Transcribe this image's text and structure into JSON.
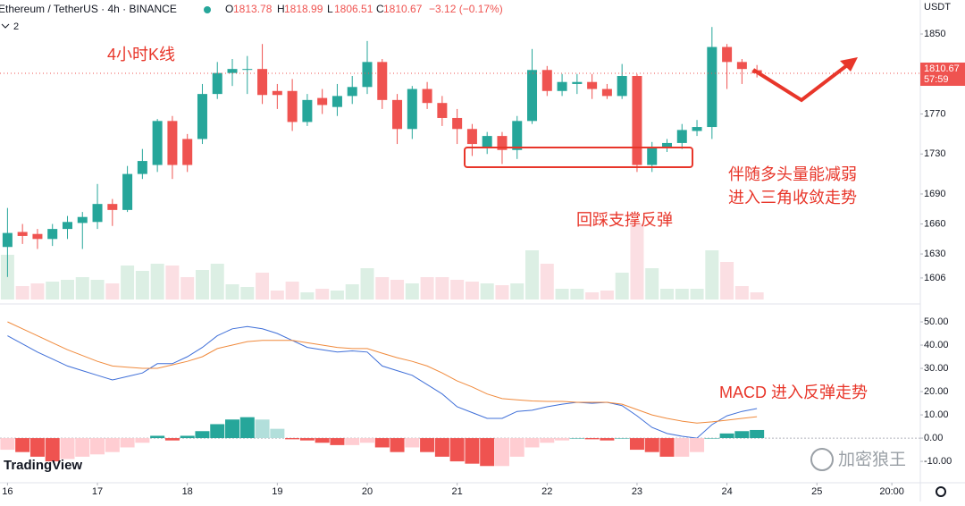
{
  "header": {
    "symbol": "Ethereum / TetherUS · 4h · BINANCE",
    "o": "O",
    "h": "H",
    "l": "L",
    "c": "C",
    "change": "−3.12 (−0.17%)",
    "indicators": 2,
    "currency": "USDT",
    "countdown": "57:59",
    "brand": "TradingView",
    "watermark": "加密狼王"
  },
  "chart_data": [
    {
      "type": "candlestick",
      "open": [
        1637,
        1652,
        1650,
        1645,
        1655,
        1661,
        1662,
        1680,
        1674,
        1710,
        1719,
        1763,
        1745,
        1745,
        1790,
        1811,
        1815,
        1815,
        1793,
        1793,
        1762,
        1786,
        1777,
        1788,
        1797,
        1822,
        1784,
        1755,
        1795,
        1781,
        1766,
        1755,
        1737,
        1748,
        1734,
        1763,
        1814,
        1793,
        1800,
        1802,
        1795,
        1788,
        1808,
        1719,
        1737,
        1741,
        1753,
        1757,
        1837,
        1822,
        1813.78
      ],
      "high": [
        1676,
        1660,
        1655,
        1660,
        1668,
        1672,
        1700,
        1685,
        1718,
        1735,
        1765,
        1768,
        1750,
        1800,
        1822,
        1825,
        1828,
        1840,
        1800,
        1805,
        1790,
        1795,
        1800,
        1808,
        1843,
        1825,
        1790,
        1798,
        1802,
        1788,
        1775,
        1760,
        1752,
        1752,
        1768,
        1835,
        1818,
        1810,
        1810,
        1810,
        1800,
        1820,
        1810,
        1742,
        1745,
        1760,
        1764,
        1857,
        1840,
        1825,
        1818.99
      ],
      "low": [
        1607,
        1640,
        1635,
        1638,
        1645,
        1635,
        1655,
        1658,
        1672,
        1705,
        1712,
        1705,
        1712,
        1740,
        1785,
        1798,
        1790,
        1780,
        1775,
        1753,
        1758,
        1770,
        1768,
        1780,
        1790,
        1775,
        1740,
        1745,
        1775,
        1758,
        1740,
        1728,
        1730,
        1720,
        1725,
        1760,
        1788,
        1788,
        1790,
        1785,
        1785,
        1785,
        1712,
        1712,
        1732,
        1735,
        1748,
        1745,
        1795,
        1800,
        1806.51
      ],
      "close": [
        1651,
        1648,
        1645,
        1655,
        1662,
        1667,
        1680,
        1674,
        1710,
        1723,
        1763,
        1719,
        1719,
        1790,
        1811,
        1815,
        1815,
        1789,
        1789,
        1762,
        1784,
        1779,
        1788,
        1797,
        1822,
        1784,
        1755,
        1795,
        1781,
        1766,
        1755,
        1740,
        1748,
        1734,
        1763,
        1814,
        1793,
        1802,
        1802,
        1795,
        1788,
        1808,
        1719,
        1737,
        1741,
        1754,
        1757,
        1837,
        1822,
        1815,
        1810.67
      ],
      "volume": [
        50,
        15,
        18,
        20,
        22,
        25,
        22,
        18,
        38,
        32,
        40,
        38,
        25,
        33,
        40,
        17,
        14,
        30,
        10,
        20,
        8,
        12,
        10,
        17,
        35,
        25,
        22,
        18,
        25,
        25,
        22,
        20,
        18,
        16,
        18,
        55,
        40,
        12,
        12,
        8,
        10,
        30,
        85,
        35,
        12,
        12,
        12,
        55,
        42,
        15,
        8
      ],
      "colors": {
        "up": "#26a69a",
        "down": "#ef5350",
        "volume_up": "#dcefe4",
        "volume_down": "#fbdfe3"
      },
      "ylim": [
        1580,
        1884
      ],
      "yticks": [
        1606,
        1630,
        1660,
        1690,
        1730,
        1770,
        1850
      ],
      "xlim": [
        -0.5,
        60.9
      ],
      "xticks": [
        {
          "value": 0,
          "label": "16"
        },
        {
          "value": 6,
          "label": "17"
        },
        {
          "value": 12,
          "label": "18"
        },
        {
          "value": 18,
          "label": "19"
        },
        {
          "value": 24,
          "label": "20"
        },
        {
          "value": 30,
          "label": "21"
        },
        {
          "value": 36,
          "label": "22"
        },
        {
          "value": 42,
          "label": "23"
        },
        {
          "value": 48,
          "label": "24"
        },
        {
          "value": 54,
          "label": "25"
        },
        {
          "value": 59,
          "label": "20:00"
        }
      ],
      "annotations": [
        "4小时K线",
        "伴随多头量能减弱",
        "进入三角收敛走势",
        "回踩支撑反弹"
      ]
    },
    {
      "type": "macd",
      "series": [
        {
          "name": "MACD",
          "color": "#3f6fd8",
          "values": [
            44,
            40.5,
            37,
            34,
            31,
            29,
            27,
            25,
            26.5,
            28,
            32,
            32,
            35,
            39,
            44,
            47,
            48,
            47,
            45,
            42,
            39,
            38,
            37,
            37.5,
            37,
            31,
            29,
            27,
            23,
            19,
            13.5,
            11,
            8.5,
            8.5,
            11.5,
            12,
            13.5,
            14.6,
            15.4,
            15,
            15.4,
            14,
            9.6,
            4.6,
            2,
            0.8,
            0,
            5.8,
            9.6,
            11.5,
            12.7
          ]
        },
        {
          "name": "Signal",
          "color": "#f08a3c",
          "values": [
            50,
            47,
            44,
            41,
            38,
            35.5,
            33,
            31,
            30.5,
            30,
            30,
            31.5,
            33,
            35,
            38.5,
            40,
            41.5,
            42,
            42,
            42,
            41,
            40,
            39,
            38.5,
            38.5,
            36.5,
            34.6,
            33,
            31,
            28,
            24.6,
            22,
            19,
            17,
            16.5,
            16,
            15.8,
            15.8,
            15.4,
            15.4,
            15.4,
            14.6,
            12.3,
            10,
            8.5,
            7.3,
            6.5,
            7,
            7.7,
            8.5,
            9.2
          ]
        },
        {
          "name": "Histogram",
          "colors": {
            "pos_up": "#26a69a",
            "pos_down": "#b2dfdb",
            "neg_down": "#ef5350",
            "neg_up": "#ffcdd2"
          },
          "values": [
            -5,
            -6,
            -8,
            -10,
            -9,
            -8,
            -7,
            -6,
            -4,
            -2,
            1,
            -1,
            1,
            3,
            6,
            8,
            9,
            8,
            4,
            -0.5,
            -1,
            -2,
            -3,
            -3,
            -2,
            -4,
            -6,
            -4,
            -6,
            -8,
            -10,
            -11,
            -12,
            -12,
            -8,
            -4,
            -2,
            -1,
            0,
            -0.5,
            -1,
            0,
            -5,
            -6,
            -8,
            -8,
            -6,
            0,
            2,
            3,
            3.5
          ]
        }
      ],
      "ylim": [
        -19.2,
        57.7
      ],
      "yticks": [
        {
          "value": -10,
          "label": "-10.00"
        },
        {
          "value": 0,
          "label": "0.00"
        },
        {
          "value": 10,
          "label": "10.00"
        },
        {
          "value": 20,
          "label": "20.00"
        },
        {
          "value": 30,
          "label": "30.00"
        },
        {
          "value": 40,
          "label": "40.00"
        },
        {
          "value": 50,
          "label": "50.00"
        }
      ],
      "annotations": [
        "MACD 进入反弹走势"
      ]
    }
  ]
}
